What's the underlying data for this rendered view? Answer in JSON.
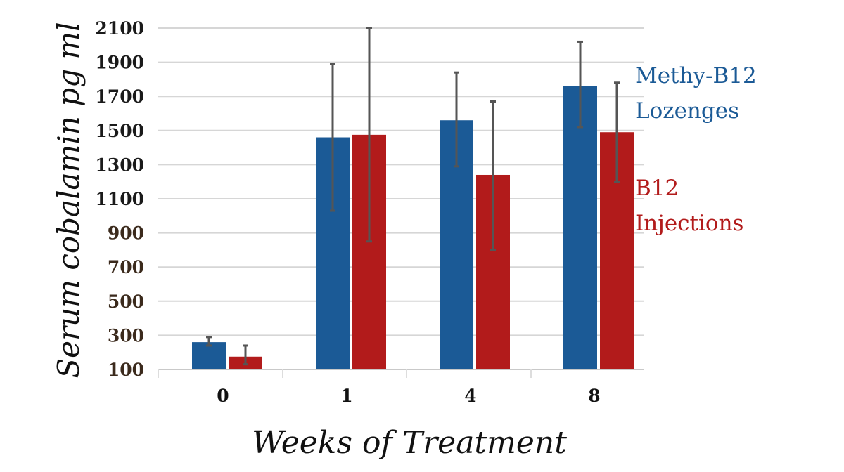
{
  "chart_data": {
    "type": "bar",
    "xlabel": "Weeks of Treatment",
    "ylabel": "Serum cobalamin pg ml",
    "categories": [
      "0",
      "1",
      "4",
      "8"
    ],
    "y_ticks": [
      "100",
      "300",
      "500",
      "700",
      "900",
      "1100",
      "1300",
      "1500",
      "1700",
      "1900",
      "2100"
    ],
    "ylim": [
      100,
      2100
    ],
    "grid": true,
    "legend_placement": "right",
    "series": [
      {
        "name_lines": [
          "Methy-B12",
          "Lozenges"
        ],
        "color": "#1b5a96",
        "values": [
          260,
          1460,
          1560,
          1760
        ],
        "error_low": [
          240,
          1030,
          1290,
          1520
        ],
        "error_high": [
          290,
          1890,
          1840,
          2020
        ]
      },
      {
        "name_lines": [
          "B12",
          "Injections"
        ],
        "color": "#b21b1b",
        "values": [
          175,
          1475,
          1240,
          1490
        ],
        "error_low": [
          130,
          850,
          800,
          1200
        ],
        "error_high": [
          240,
          2100,
          1670,
          1780
        ]
      }
    ]
  }
}
